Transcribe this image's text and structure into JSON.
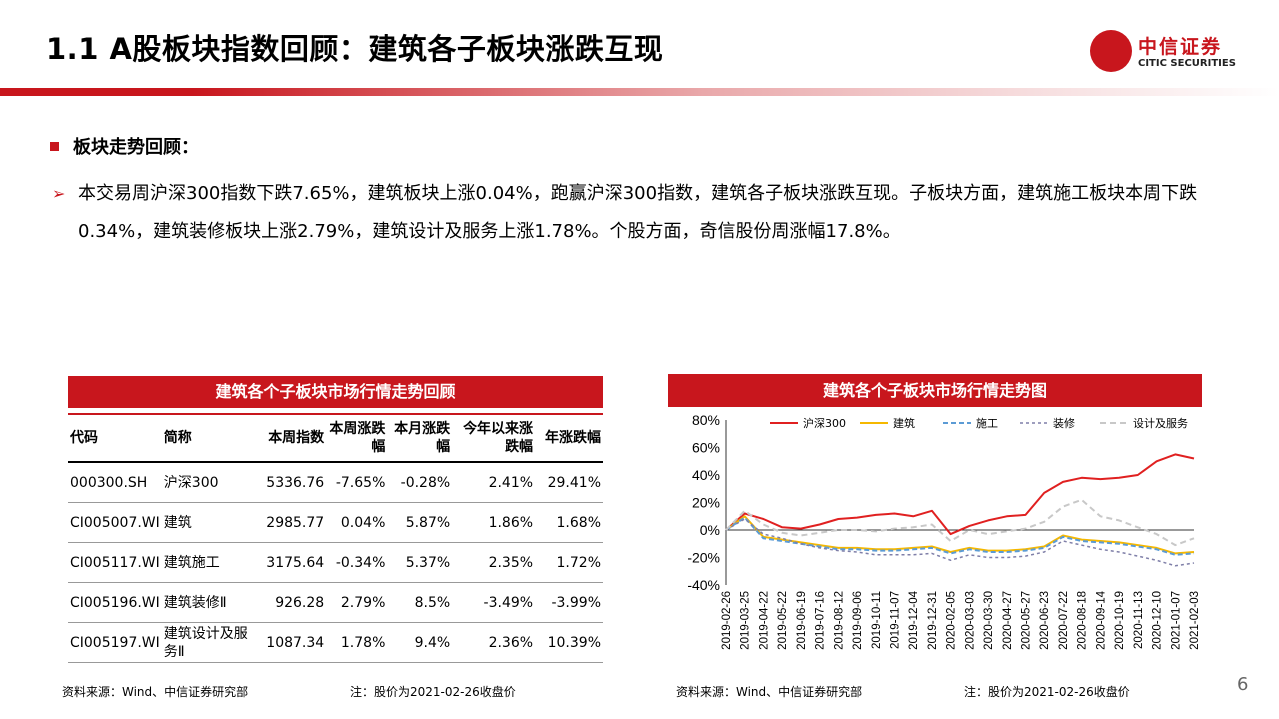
{
  "header": {
    "title": "1.1 A股板块指数回顾：建筑各子板块涨跌互现",
    "logo_cn": "中信证券",
    "logo_en": "CITIC SECURITIES"
  },
  "section": {
    "heading": "板块走势回顾：",
    "paragraph": "本交易周沪深300指数下跌7.65%，建筑板块上涨0.04%，跑赢沪深300指数，建筑各子板块涨跌互现。子板块方面，建筑施工板块本周下跌0.34%，建筑装修板块上涨2.79%，建筑设计及服务上涨1.78%。个股方面，奇信股份周涨幅17.8%。"
  },
  "table": {
    "title": "建筑各个子板块市场行情走势回顾",
    "headers": [
      "代码",
      "简称",
      "本周指数",
      "本周涨跌幅",
      "本月涨跌幅",
      "今年以来涨跌幅",
      "年涨跌幅"
    ],
    "rows": [
      [
        "000300.SH",
        "沪深300",
        "5336.76",
        "-7.65%",
        "-0.28%",
        "2.41%",
        "29.41%"
      ],
      [
        "CI005007.WI",
        "建筑",
        "2985.77",
        "0.04%",
        "5.87%",
        "1.86%",
        "1.68%"
      ],
      [
        "CI005117.WI",
        "建筑施工",
        "3175.64",
        "-0.34%",
        "5.37%",
        "2.35%",
        "1.72%"
      ],
      [
        "CI005196.WI",
        "建筑装修Ⅱ",
        "926.28",
        "2.79%",
        "8.5%",
        "-3.49%",
        "-3.99%"
      ],
      [
        "CI005197.WI",
        "建筑设计及服务Ⅱ",
        "1087.34",
        "1.78%",
        "9.4%",
        "2.36%",
        "10.39%"
      ]
    ],
    "source": "资料来源：Wind、中信证券研究部",
    "note": "注：股价为2021-02-26收盘价"
  },
  "chart": {
    "title": "建筑各个子板块市场行情走势图",
    "source": "资料来源：Wind、中信证券研究部",
    "note": "注：股价为2021-02-26收盘价"
  },
  "chart_data": {
    "type": "line",
    "ylim": [
      -40,
      80
    ],
    "yticks": [
      "80%",
      "60%",
      "40%",
      "20%",
      "0%",
      "-20%",
      "-40%"
    ],
    "grid": false,
    "legend": "top",
    "x": [
      "2019-02-26",
      "2019-03-25",
      "2019-04-22",
      "2019-05-22",
      "2019-06-19",
      "2019-07-16",
      "2019-08-12",
      "2019-09-06",
      "2019-10-11",
      "2019-11-07",
      "2019-12-04",
      "2019-12-31",
      "2020-02-05",
      "2020-03-03",
      "2020-03-30",
      "2020-04-27",
      "2020-05-27",
      "2020-06-23",
      "2020-07-22",
      "2020-08-18",
      "2020-09-14",
      "2020-10-19",
      "2020-11-13",
      "2020-12-10",
      "2021-01-07",
      "2021-02-03"
    ],
    "series": [
      {
        "name": "沪深300",
        "color": "#e02020",
        "width": 2,
        "dash": "",
        "values": [
          0,
          12,
          8,
          2,
          1,
          4,
          8,
          9,
          11,
          12,
          10,
          14,
          -3,
          3,
          7,
          10,
          11,
          27,
          35,
          38,
          37,
          38,
          40,
          50,
          55,
          52
        ]
      },
      {
        "name": "建筑",
        "color": "#f5b800",
        "width": 2,
        "dash": "",
        "values": [
          0,
          10,
          -5,
          -7,
          -9,
          -11,
          -13,
          -13,
          -14,
          -14,
          -13,
          -12,
          -16,
          -13,
          -15,
          -15,
          -14,
          -12,
          -4,
          -7,
          -8,
          -9,
          -11,
          -13,
          -17,
          -16
        ]
      },
      {
        "name": "施工",
        "color": "#5b9bd5",
        "width": 2,
        "dash": "5,3",
        "values": [
          0,
          9,
          -6,
          -8,
          -10,
          -12,
          -14,
          -14,
          -15,
          -15,
          -14,
          -13,
          -17,
          -14,
          -16,
          -16,
          -15,
          -13,
          -5,
          -8,
          -9,
          -10,
          -12,
          -14,
          -18,
          -17
        ]
      },
      {
        "name": "装修",
        "color": "#7f7fa8",
        "width": 1.5,
        "dash": "3,3",
        "values": [
          0,
          8,
          -3,
          -6,
          -10,
          -13,
          -15,
          -16,
          -18,
          -18,
          -18,
          -17,
          -22,
          -18,
          -20,
          -20,
          -19,
          -16,
          -8,
          -11,
          -14,
          -16,
          -19,
          -22,
          -26,
          -24
        ]
      },
      {
        "name": "设计及服务",
        "color": "#c8c8c8",
        "width": 2,
        "dash": "6,4",
        "values": [
          0,
          14,
          4,
          -2,
          -4,
          -2,
          0,
          0,
          -1,
          1,
          2,
          4,
          -8,
          0,
          -3,
          -1,
          1,
          6,
          17,
          22,
          10,
          7,
          2,
          -3,
          -11,
          -6
        ]
      }
    ]
  },
  "page_number": "6"
}
